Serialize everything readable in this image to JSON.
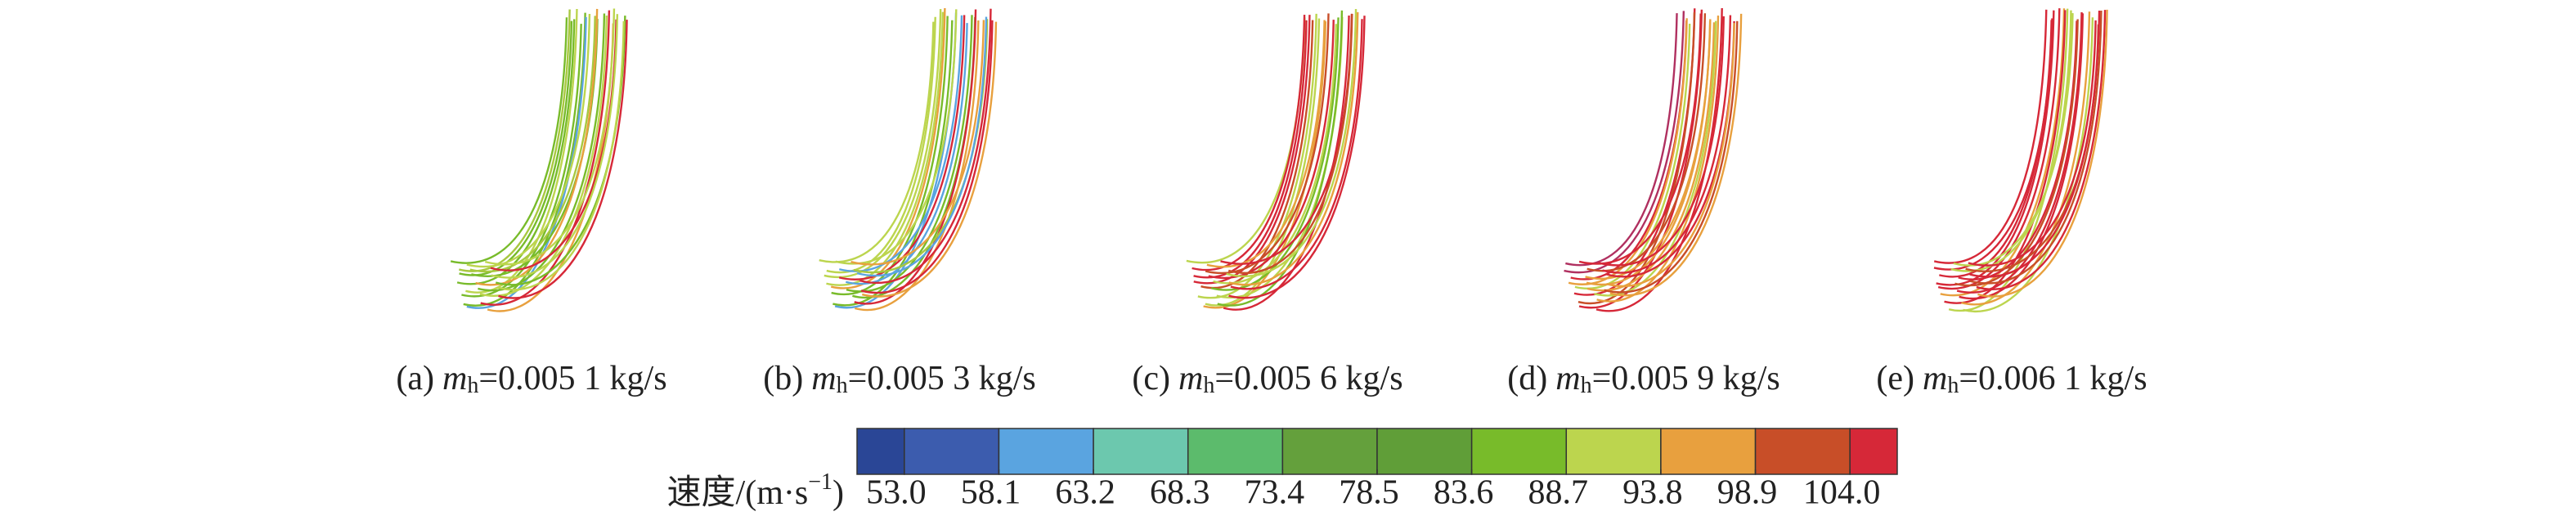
{
  "panels": [
    {
      "label": "(a)",
      "symbol": "m",
      "subscript": "h",
      "text": "=0.005 1 kg/s"
    },
    {
      "label": "(b)",
      "symbol": "m",
      "subscript": "h",
      "text": "=0.005 3 kg/s"
    },
    {
      "label": "(c)",
      "symbol": "m",
      "subscript": "h",
      "text": "=0.005 6 kg/s"
    },
    {
      "label": "(d)",
      "symbol": "m",
      "subscript": "h",
      "text": "=0.005 9 kg/s"
    },
    {
      "label": "(e)",
      "symbol": "m",
      "subscript": "h",
      "text": "=0.006 1 kg/s"
    }
  ],
  "colorbar": {
    "title": "速度/(m·s",
    "title_superscript": "−1",
    "title_end": ")",
    "colors": [
      "#2a4696",
      "#3c5cae",
      "#5aa4e0",
      "#6cc8ae",
      "#5cbb6c",
      "#64a03c",
      "#609e38",
      "#78bb2a",
      "#bcd54e",
      "#e8a03e",
      "#c84e28",
      "#d62838"
    ],
    "ticks": [
      {
        "value": 53,
        "label": "53.0"
      },
      {
        "value": 58.1,
        "label": "58.1"
      },
      {
        "value": 63.2,
        "label": "63.2"
      },
      {
        "value": 68.3,
        "label": "68.3"
      },
      {
        "value": 73.4,
        "label": "73.4"
      },
      {
        "value": 78.5,
        "label": "78.5"
      },
      {
        "value": 83.6,
        "label": "83.6"
      },
      {
        "value": 88.7,
        "label": "88.7"
      },
      {
        "value": 93.8,
        "label": "93.8"
      },
      {
        "value": 98.9,
        "label": "98.9"
      },
      {
        "value": 104,
        "label": "104.0"
      }
    ]
  }
}
